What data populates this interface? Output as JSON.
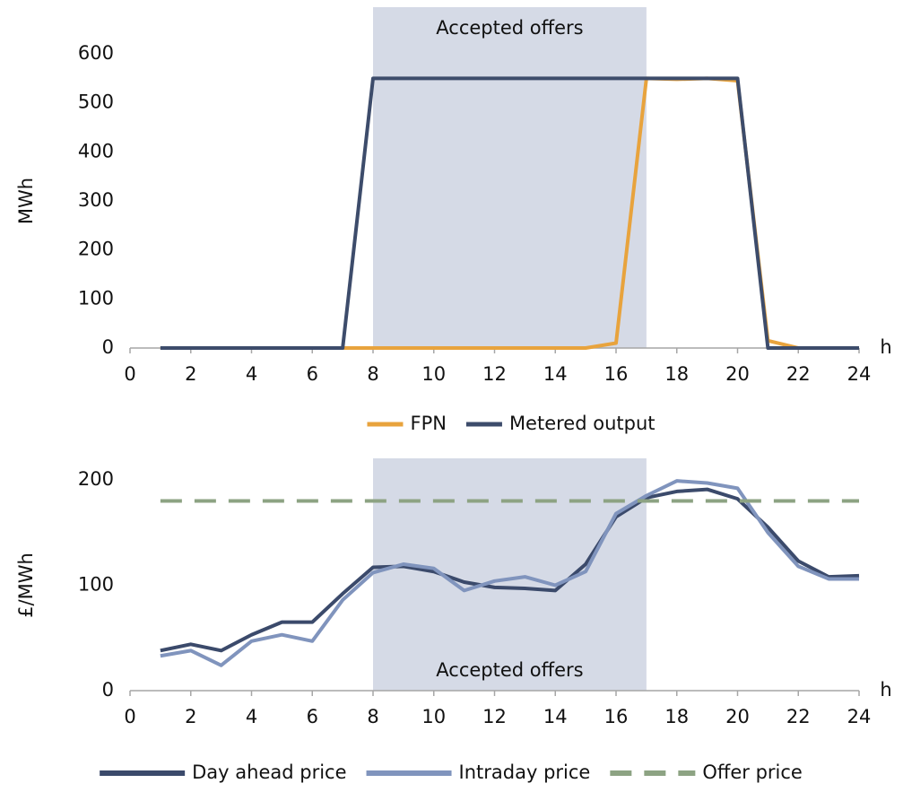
{
  "chart_data": [
    {
      "type": "line",
      "ylabel": "MWh",
      "xlabel": "h",
      "x": [
        1,
        2,
        3,
        4,
        5,
        6,
        7,
        8,
        9,
        10,
        11,
        12,
        13,
        14,
        15,
        16,
        17,
        18,
        19,
        20,
        21,
        22,
        23,
        24
      ],
      "xlim": [
        0,
        24
      ],
      "xticks": [
        0,
        2,
        4,
        6,
        8,
        10,
        12,
        14,
        16,
        18,
        20,
        22,
        24
      ],
      "ylim": [
        0,
        600
      ],
      "yticks": [
        0,
        100,
        200,
        300,
        400,
        500,
        600
      ],
      "shade": {
        "span": [
          8,
          17
        ],
        "label": "Accepted offers",
        "color": "#d5dae6",
        "label_position": "top"
      },
      "legend": "bottom",
      "series": [
        {
          "name": "FPN",
          "color": "#e8a33d",
          "dashed": false,
          "values": [
            0,
            0,
            0,
            0,
            0,
            0,
            0,
            0,
            0,
            0,
            0,
            0,
            0,
            0,
            0,
            10,
            550,
            548,
            550,
            545,
            15,
            0,
            0,
            0
          ]
        },
        {
          "name": "Metered output",
          "color": "#3d4c6b",
          "dashed": false,
          "values": [
            0,
            0,
            0,
            0,
            0,
            0,
            0,
            550,
            550,
            550,
            550,
            550,
            550,
            550,
            550,
            550,
            550,
            550,
            550,
            550,
            0,
            0,
            0,
            0
          ]
        }
      ]
    },
    {
      "type": "line",
      "ylabel": "£/MWh",
      "xlabel": "h",
      "x": [
        1,
        2,
        3,
        4,
        5,
        6,
        7,
        8,
        9,
        10,
        11,
        12,
        13,
        14,
        15,
        16,
        17,
        18,
        19,
        20,
        21,
        22,
        23,
        24
      ],
      "xlim": [
        0,
        24
      ],
      "xticks": [
        0,
        2,
        4,
        6,
        8,
        10,
        12,
        14,
        16,
        18,
        20,
        22,
        24
      ],
      "ylim": [
        0,
        200
      ],
      "yticks": [
        0,
        100,
        200
      ],
      "shade": {
        "span": [
          8,
          17
        ],
        "label": "Accepted offers",
        "color": "#d5dae6",
        "label_position": "bottom"
      },
      "legend": "bottom",
      "series": [
        {
          "name": "Day ahead price",
          "color": "#3b4a6b",
          "dashed": false,
          "values": [
            38,
            44,
            38,
            53,
            65,
            65,
            92,
            117,
            118,
            113,
            103,
            98,
            97,
            95,
            120,
            165,
            183,
            189,
            191,
            182,
            155,
            123,
            108,
            109
          ]
        },
        {
          "name": "Intraday price",
          "color": "#8094bd",
          "dashed": false,
          "values": [
            33,
            38,
            24,
            47,
            53,
            47,
            86,
            112,
            120,
            116,
            95,
            104,
            108,
            100,
            113,
            168,
            185,
            199,
            197,
            192,
            150,
            118,
            106,
            106
          ]
        },
        {
          "name": "Offer price",
          "color": "#8da383",
          "dashed": true,
          "values": [
            180,
            180,
            180,
            180,
            180,
            180,
            180,
            180,
            180,
            180,
            180,
            180,
            180,
            180,
            180,
            180,
            180,
            180,
            180,
            180,
            180,
            180,
            180,
            180
          ]
        }
      ]
    }
  ]
}
